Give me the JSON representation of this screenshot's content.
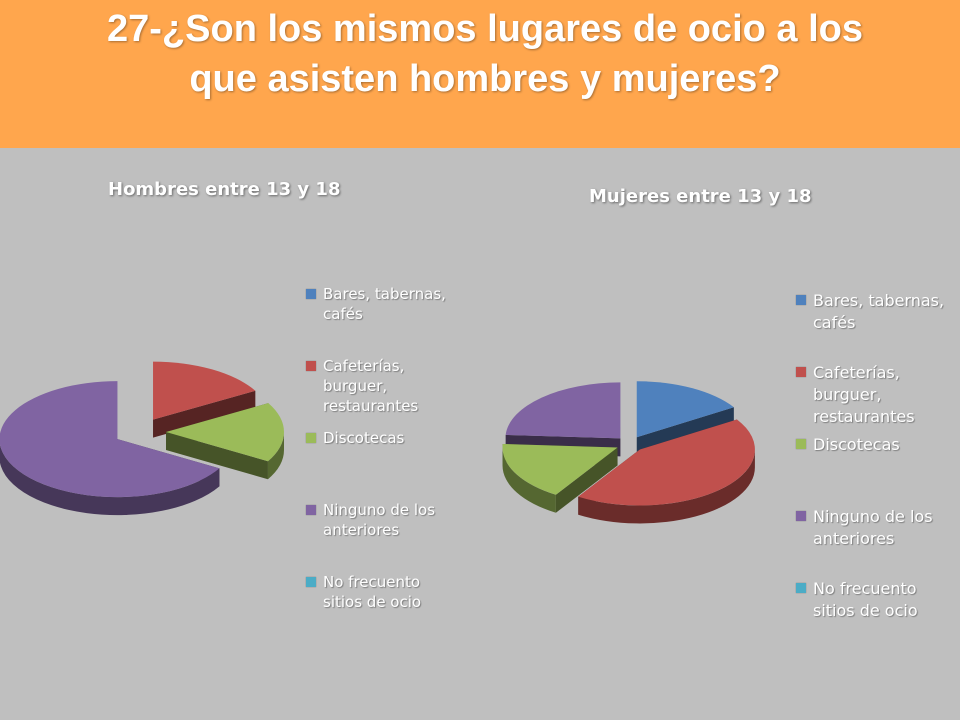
{
  "slide": {
    "title_line1": "27-¿Son los mismos lugares de ocio a los",
    "title_line2": "que asisten hombres y mujeres?",
    "header_color": "#ffa64d",
    "background_color": "#bfbfbf"
  },
  "chart_data": [
    {
      "type": "pie",
      "title": "Hombres entre 13 y 18",
      "style": "3d-exploded",
      "legend_position": "right",
      "categories": [
        "Bares, tabernas, cafés",
        "Cafeterías, burguer, restaurantes",
        "Discotecas",
        "Ninguno de los anteriores",
        "No frecuento sitios de ocio"
      ],
      "values": [
        0,
        16.7,
        16.7,
        66.6,
        0
      ],
      "colors": [
        "#4f81bd",
        "#c0504d",
        "#9bbb59",
        "#8064a2",
        "#4bacc6"
      ]
    },
    {
      "type": "pie",
      "title": "Mujeres entre 13 y 18",
      "style": "3d-exploded",
      "legend_position": "right",
      "categories": [
        "Bares, tabernas, cafés",
        "Cafeterías, burguer, restaurantes",
        "Discotecas",
        "Ninguno de los anteriores",
        "No frecuento sitios de ocio"
      ],
      "values": [
        16,
        43,
        17,
        24,
        0
      ],
      "colors": [
        "#4f81bd",
        "#c0504d",
        "#9bbb59",
        "#8064a2",
        "#4bacc6"
      ]
    }
  ]
}
